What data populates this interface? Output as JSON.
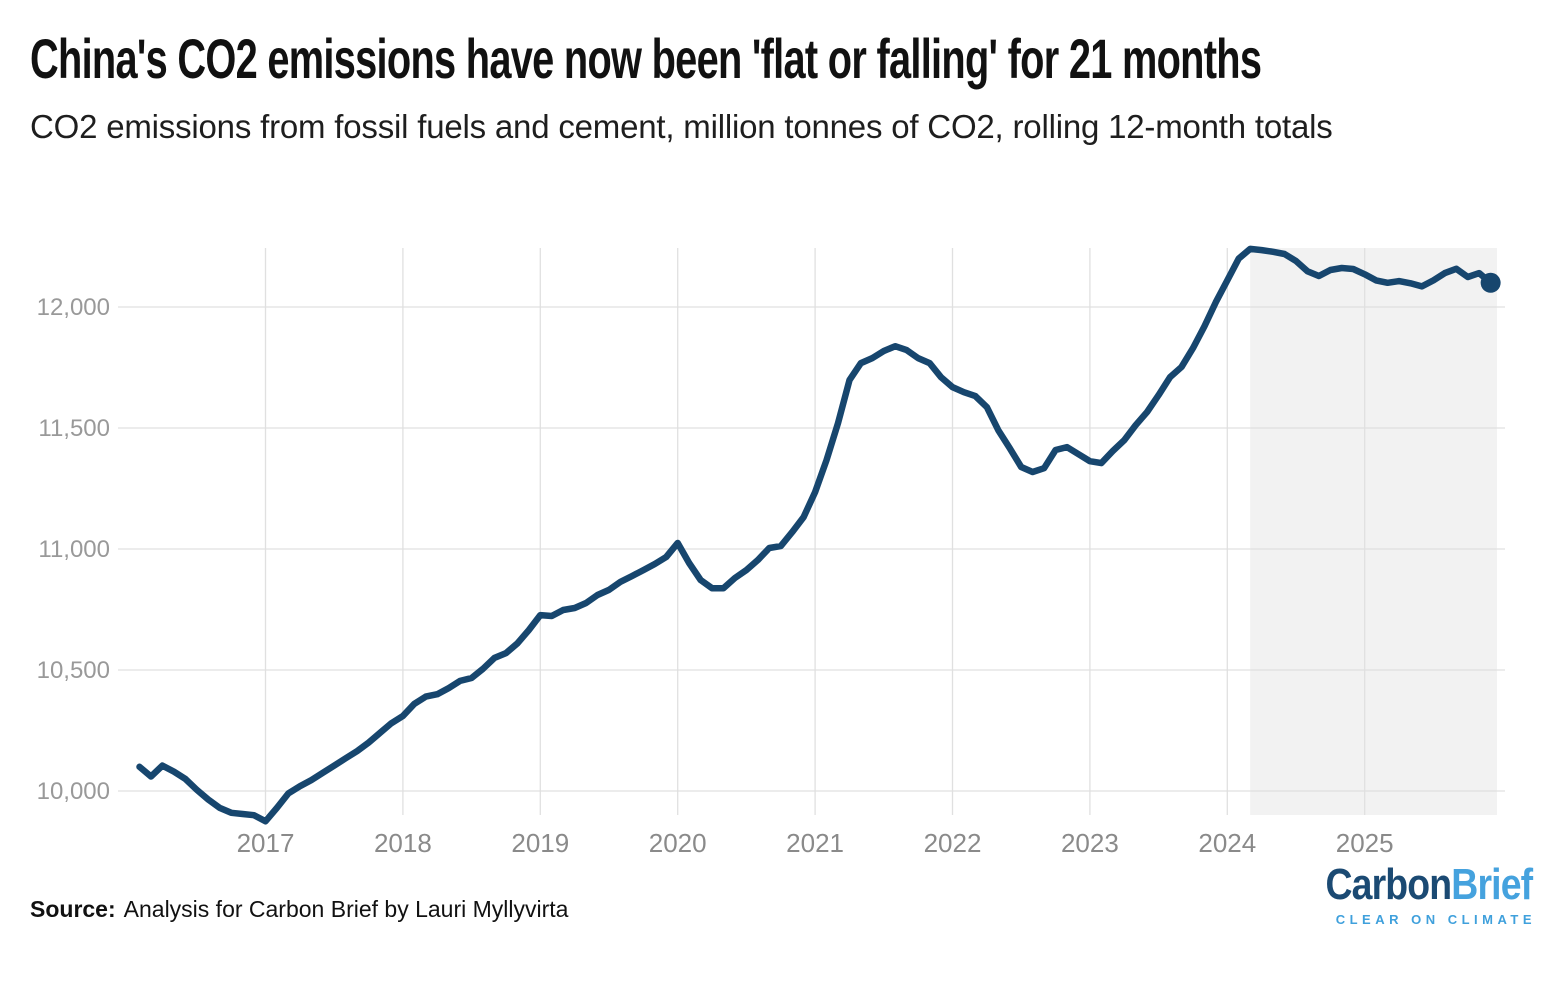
{
  "page": {
    "title": "China's CO2 emissions have now been 'flat or falling' for 21 months",
    "subtitle": "CO2 emissions from fossil fuels and cement, million tonnes of CO2, rolling 12-month totals",
    "source_label": "Source:",
    "source_text": "Analysis for Carbon Brief by Lauri Myllyvirta"
  },
  "logo": {
    "part1": "Carbon",
    "part2": "Brief",
    "tagline": "CLEAR ON CLIMATE"
  },
  "colors": {
    "line": "#17466E",
    "end_dot": "#17466E",
    "shade": "#F2F2F2",
    "grid": "#E0E0E0",
    "logo_dark": "#1B4A73",
    "logo_light": "#45A2DE",
    "tagline": "#3FA0DC"
  },
  "chart_data": {
    "type": "line",
    "title": "China's CO2 emissions have now been 'flat or falling' for 21 months",
    "ylabel": "Million tonnes of CO2, rolling 12-month totals",
    "xlabel": "",
    "grid": true,
    "legend": "none",
    "y_ticks": [
      10000,
      10500,
      11000,
      11500,
      12000
    ],
    "x_ticks": [
      2017,
      2018,
      2019,
      2020,
      2021,
      2022,
      2023,
      2024,
      2025
    ],
    "ylim": [
      9830,
      12320
    ],
    "xlim": [
      2016.0,
      2026.05
    ],
    "shaded_region": {
      "from": "2024-03",
      "to": "2025-12",
      "label": "flat-or-falling period (21 months)"
    },
    "end_dot": true,
    "series": [
      {
        "name": "CO2 emissions, rolling 12-month total (million tonnes)",
        "frequency": "monthly",
        "start_year": 2016,
        "start_month": 2,
        "values": [
          10100,
          10060,
          10105,
          10080,
          10050,
          10005,
          9965,
          9930,
          9910,
          9905,
          9900,
          9875,
          9930,
          9990,
          10020,
          10045,
          10075,
          10105,
          10135,
          10165,
          10200,
          10240,
          10280,
          10310,
          10360,
          10390,
          10400,
          10425,
          10455,
          10467,
          10505,
          10550,
          10570,
          10610,
          10665,
          10727,
          10723,
          10748,
          10756,
          10777,
          10810,
          10831,
          10864,
          10888,
          10913,
          10938,
          10967,
          11025,
          10942,
          10872,
          10838,
          10838,
          10880,
          10913,
          10954,
          11004,
          11012,
          11070,
          11132,
          11235,
          11367,
          11520,
          11698,
          11768,
          11789,
          11818,
          11838,
          11822,
          11789,
          11768,
          11710,
          11669,
          11648,
          11632,
          11586,
          11491,
          11417,
          11339,
          11318,
          11334,
          11409,
          11421,
          11392,
          11363,
          11355,
          11405,
          11450,
          11512,
          11566,
          11636,
          11710,
          11752,
          11830,
          11920,
          12020,
          12110,
          12200,
          12240,
          12235,
          12228,
          12219,
          12190,
          12148,
          12128,
          12153,
          12161,
          12157,
          12135,
          12110,
          12100,
          12107,
          12098,
          12085,
          12110,
          12140,
          12158,
          12124,
          12140,
          12100
        ]
      }
    ]
  }
}
